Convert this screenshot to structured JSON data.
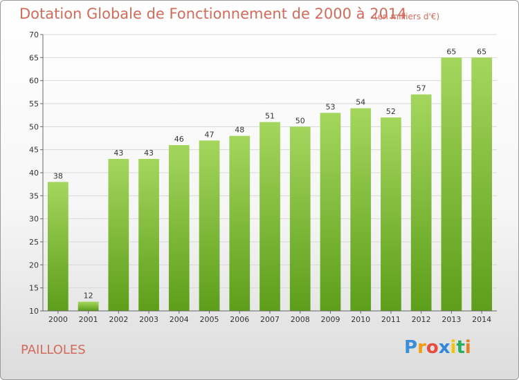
{
  "chart_data": {
    "type": "bar",
    "title": "Dotation Globale de Fonctionnement de 2000 à 2014",
    "subtitle": "(en milliers d'€)",
    "categories": [
      "2000",
      "2001",
      "2002",
      "2003",
      "2004",
      "2005",
      "2006",
      "2007",
      "2008",
      "2009",
      "2010",
      "2011",
      "2012",
      "2013",
      "2014"
    ],
    "values": [
      38,
      12,
      43,
      43,
      46,
      47,
      48,
      51,
      50,
      53,
      54,
      52,
      57,
      65,
      65
    ],
    "ylim": [
      10,
      70
    ],
    "yticks": [
      10,
      15,
      20,
      25,
      30,
      35,
      40,
      45,
      50,
      55,
      60,
      65,
      70
    ],
    "grid": true,
    "bar_color": "#8cc63f"
  },
  "commune": "PAILLOLES",
  "logo": {
    "text": "Proxiti",
    "letters": [
      "P",
      "r",
      "o",
      "x",
      "i",
      "t",
      "i"
    ],
    "colors": [
      "#3a8fd8",
      "#f39c12",
      "#e74c3c",
      "#2e86de",
      "#f1c40f",
      "#27ae60",
      "#e67e22"
    ]
  }
}
